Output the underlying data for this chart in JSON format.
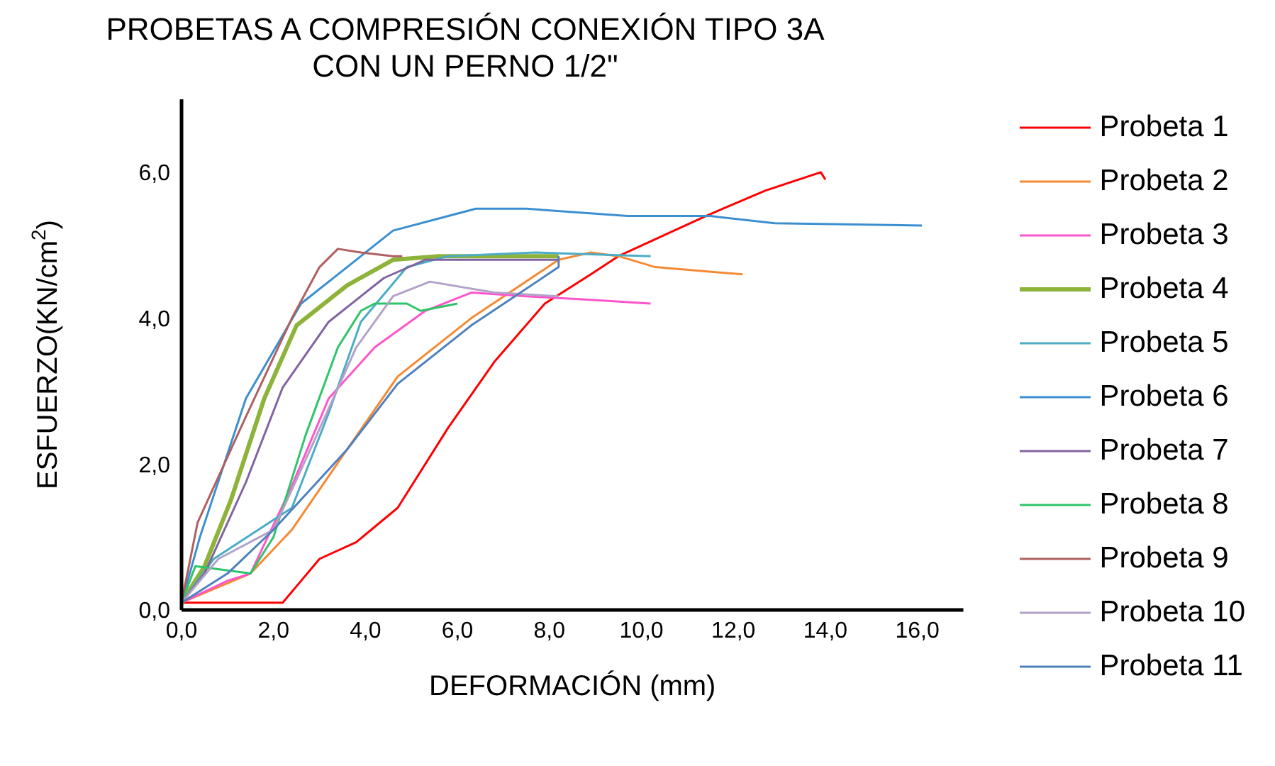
{
  "chart_data": {
    "type": "line",
    "title": "PROBETAS A COMPRESIÓN CONEXIÓN TIPO 3A\nCON UN PERNO 1/2\"",
    "xlabel": "DEFORMACIÓN (mm)",
    "ylabel": "ESFUERZO(KN/cm$^{2}$)",
    "xlim": [
      0,
      17
    ],
    "ylim": [
      0,
      7
    ],
    "xticks": [
      {
        "value": 0,
        "label": "0,0"
      },
      {
        "value": 2,
        "label": "2,0"
      },
      {
        "value": 4,
        "label": "4,0"
      },
      {
        "value": 6,
        "label": "6,0"
      },
      {
        "value": 8,
        "label": "8,0"
      },
      {
        "value": 10,
        "label": "10,0"
      },
      {
        "value": 12,
        "label": "12,0"
      },
      {
        "value": 14,
        "label": "14,0"
      },
      {
        "value": 16,
        "label": "16,0"
      }
    ],
    "yticks": [
      {
        "value": 0,
        "label": "0,0"
      },
      {
        "value": 2,
        "label": "2,0"
      },
      {
        "value": 4,
        "label": "4,0"
      },
      {
        "value": 6,
        "label": "6,0"
      }
    ],
    "grid": false,
    "legend": "right",
    "marker": "none",
    "line_style": "solid",
    "series": [
      {
        "name": "Probeta 1",
        "color": "#ff0000",
        "x": [
          0,
          1,
          2.2,
          2.6,
          3.0,
          3.8,
          4.7,
          5.8,
          6.8,
          7.9,
          8.9,
          9.5,
          11.4,
          12.7,
          13.9,
          14.0
        ],
        "values": [
          0.1,
          0.1,
          0.1,
          0.4,
          0.7,
          0.93,
          1.4,
          2.5,
          3.4,
          4.2,
          4.6,
          4.85,
          5.4,
          5.75,
          6.0,
          5.9
        ]
      },
      {
        "name": "Probeta 2",
        "color": "#f58a35",
        "x": [
          0,
          1.5,
          2.4,
          3.6,
          4.7,
          6.3,
          8.2,
          8.9,
          9.5,
          10.3,
          12.2
        ],
        "values": [
          0.1,
          0.5,
          1.1,
          2.2,
          3.2,
          4.0,
          4.8,
          4.9,
          4.85,
          4.7,
          4.6
        ]
      },
      {
        "name": "Probeta 3",
        "color": "#ff55cc",
        "x": [
          0,
          1,
          1.5,
          2.4,
          3.2,
          4.2,
          5.3,
          6.3,
          7.5,
          8.9,
          10.2
        ],
        "values": [
          0.1,
          0.4,
          0.5,
          1.7,
          2.9,
          3.6,
          4.1,
          4.35,
          4.3,
          4.25,
          4.2
        ]
      },
      {
        "name": "Probeta 4",
        "color": "#8db33a",
        "x": [
          0,
          0.5,
          1.07,
          1.8,
          2.5,
          3.6,
          4.6,
          5.6,
          8.2
        ],
        "values": [
          0.1,
          0.6,
          1.5,
          2.9,
          3.9,
          4.45,
          4.8,
          4.85,
          4.85
        ]
      },
      {
        "name": "Probeta 5",
        "color": "#4bacc6",
        "x": [
          0,
          0.7,
          2.4,
          3.2,
          3.9,
          4.9,
          5.8,
          7.7,
          10.2
        ],
        "values": [
          0.1,
          0.7,
          1.4,
          2.7,
          3.95,
          4.7,
          4.85,
          4.9,
          4.85
        ]
      },
      {
        "name": "Probeta 6",
        "color": "#3b8fd0",
        "x": [
          0,
          0.4,
          1.4,
          2.6,
          3.6,
          4.6,
          5.8,
          6.4,
          7.5,
          9.7,
          11.5,
          12.9,
          16.1
        ],
        "values": [
          0.1,
          1.0,
          2.9,
          4.2,
          4.7,
          5.2,
          5.4,
          5.5,
          5.5,
          5.4,
          5.4,
          5.3,
          5.27
        ]
      },
      {
        "name": "Probeta 7",
        "color": "#8064a2",
        "x": [
          0,
          0.5,
          1.4,
          2.2,
          3.2,
          4.4,
          5.3,
          8.2
        ],
        "values": [
          0.1,
          0.5,
          1.75,
          3.05,
          3.95,
          4.55,
          4.8,
          4.8
        ]
      },
      {
        "name": "Probeta 8",
        "color": "#2ec46a",
        "x": [
          0,
          0.3,
          1.5,
          2.0,
          2.7,
          3.4,
          3.9,
          4.2,
          4.9,
          5.2,
          6.0
        ],
        "values": [
          0.1,
          0.6,
          0.5,
          1.0,
          2.4,
          3.6,
          4.1,
          4.2,
          4.2,
          4.1,
          4.2
        ]
      },
      {
        "name": "Probeta 9",
        "color": "#b06060",
        "x": [
          0,
          0.35,
          1.4,
          2.4,
          3.0,
          3.4,
          3.9,
          4.6,
          4.8
        ],
        "values": [
          0.1,
          1.2,
          2.65,
          4.0,
          4.7,
          4.95,
          4.9,
          4.85,
          4.85
        ]
      },
      {
        "name": "Probeta 10",
        "color": "#b3a2c7",
        "x": [
          0,
          0.8,
          2.0,
          2.8,
          3.8,
          4.6,
          5.4,
          6.8,
          8.2
        ],
        "values": [
          0.1,
          0.7,
          1.1,
          2.2,
          3.6,
          4.3,
          4.5,
          4.35,
          4.3
        ]
      },
      {
        "name": "Probeta 11",
        "color": "#4f81bd",
        "x": [
          0,
          1.0,
          2.0,
          3.6,
          4.7,
          6.3,
          8.2,
          8.2
        ],
        "values": [
          0.1,
          0.5,
          1.1,
          2.2,
          3.1,
          3.9,
          4.7,
          4.85
        ]
      }
    ]
  }
}
